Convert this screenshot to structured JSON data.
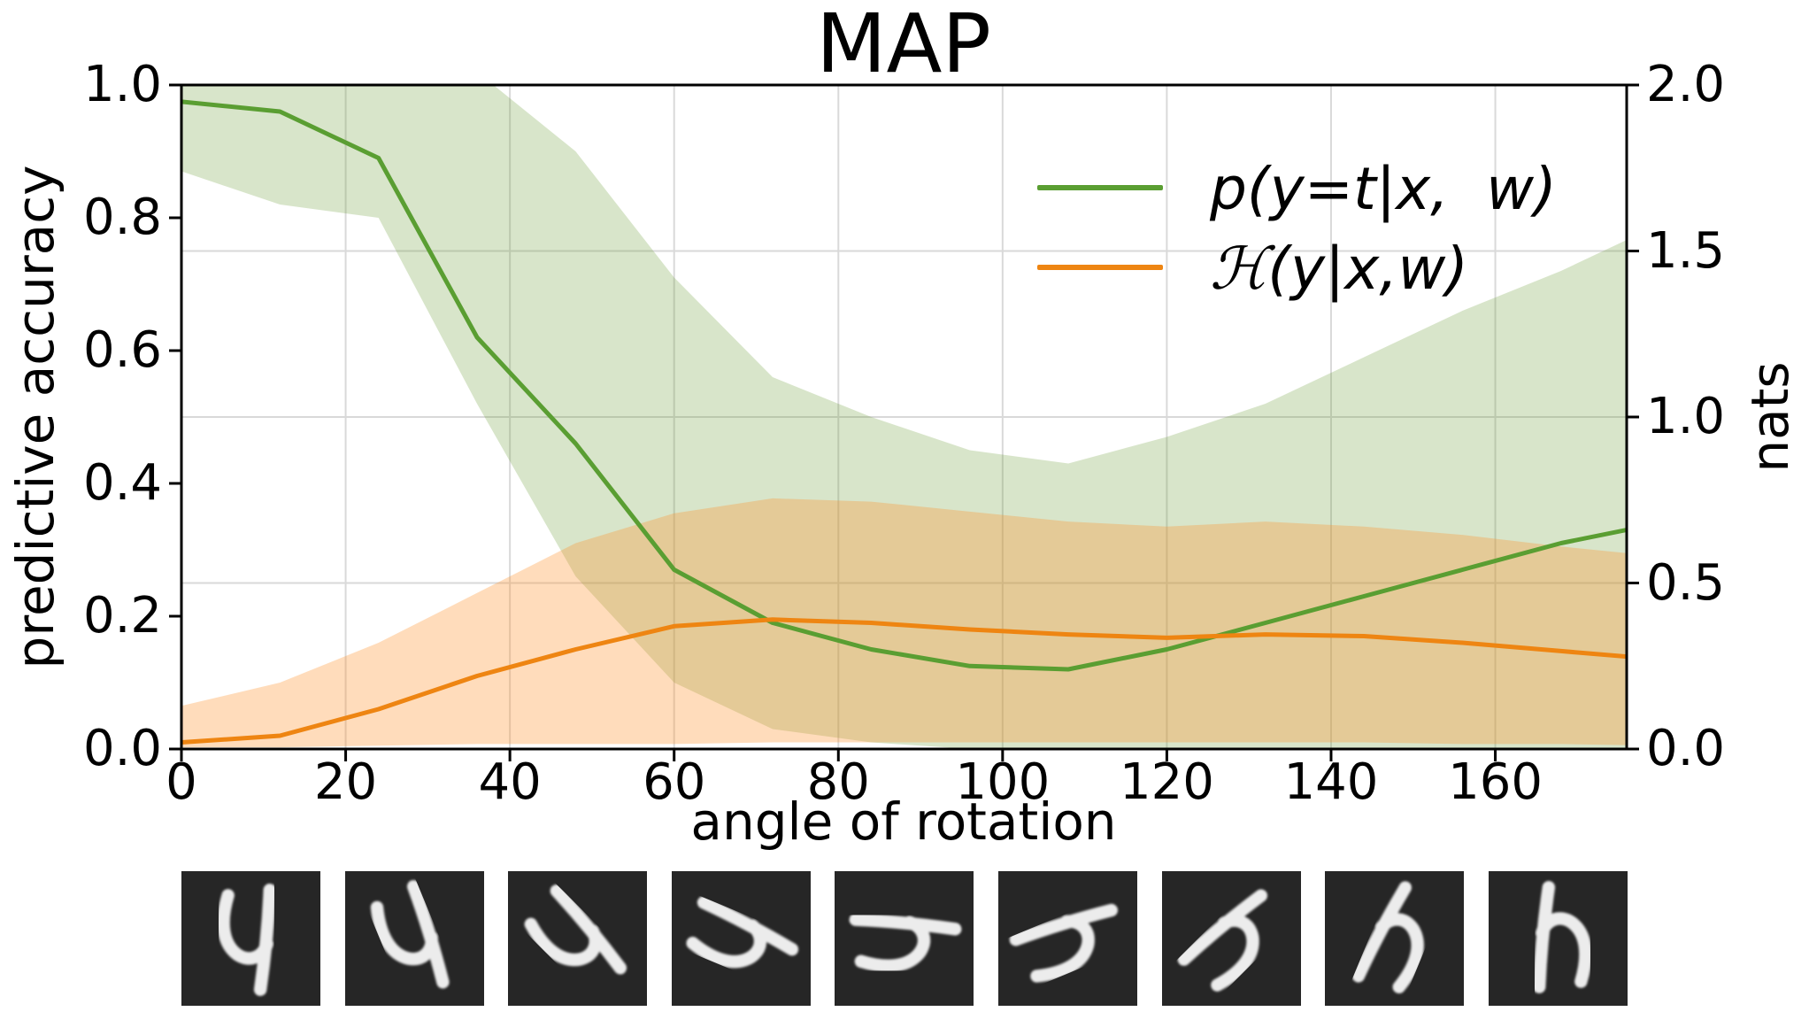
{
  "figure": {
    "title": "MAP",
    "background": "#ffffff"
  },
  "chart_data": {
    "type": "line",
    "title": "MAP",
    "xlabel": "angle of rotation",
    "ylabel_left": "predictive accuracy",
    "ylabel_right": "nats",
    "xlim": [
      0,
      176
    ],
    "ylim_left": [
      0.0,
      1.0
    ],
    "ylim_right": [
      0.0,
      2.0
    ],
    "grid": "on",
    "xticks": [
      0,
      20,
      40,
      60,
      80,
      100,
      120,
      140,
      160
    ],
    "yticks_left": [
      {
        "label": "1.0",
        "value": 1.0
      },
      {
        "label": "0.8",
        "value": 0.8
      },
      {
        "label": "0.6",
        "value": 0.6
      },
      {
        "label": "0.4",
        "value": 0.4
      },
      {
        "label": "0.2",
        "value": 0.2
      },
      {
        "label": "0.0",
        "value": 0.0
      }
    ],
    "yticks_right": [
      {
        "label": "2.0",
        "value": 2.0
      },
      {
        "label": "1.5",
        "value": 1.5
      },
      {
        "label": "1.0",
        "value": 1.0
      },
      {
        "label": "0.5",
        "value": 0.5
      },
      {
        "label": "0.0",
        "value": 0.0
      }
    ],
    "grid_y_right_values": [
      1.5,
      1.0,
      0.5
    ],
    "x": [
      0,
      12,
      24,
      36,
      48,
      60,
      72,
      84,
      96,
      108,
      120,
      132,
      144,
      156,
      168,
      180
    ],
    "series": [
      {
        "name": "accuracy",
        "label": "p(y=t|x,  w)",
        "axis": "left",
        "color": "#5a9e32",
        "fill_color": "rgba(110,160,60,0.27)",
        "values": [
          0.975,
          0.96,
          0.89,
          0.62,
          0.46,
          0.27,
          0.19,
          0.15,
          0.125,
          0.12,
          0.15,
          0.19,
          0.23,
          0.27,
          0.31,
          0.34
        ],
        "band_upper": [
          1.1,
          1.1,
          1.08,
          1.02,
          0.9,
          0.71,
          0.56,
          0.5,
          0.45,
          0.43,
          0.47,
          0.52,
          0.59,
          0.66,
          0.72,
          0.79
        ],
        "band_lower": [
          0.87,
          0.82,
          0.8,
          0.52,
          0.26,
          0.1,
          0.03,
          0.01,
          0.0,
          0.0,
          0.0,
          0.0,
          0.0,
          0.0,
          0.0,
          0.0
        ]
      },
      {
        "name": "entropy",
        "label": "(y|x,w)",
        "label_prefix_script": "H",
        "axis": "right",
        "color": "#ee8512",
        "fill_color": "rgba(255,145,45,0.32)",
        "values": [
          0.02,
          0.04,
          0.12,
          0.22,
          0.3,
          0.37,
          0.39,
          0.38,
          0.36,
          0.345,
          0.335,
          0.345,
          0.34,
          0.32,
          0.295,
          0.27
        ],
        "band_upper": [
          0.13,
          0.2,
          0.32,
          0.47,
          0.62,
          0.71,
          0.755,
          0.745,
          0.715,
          0.685,
          0.67,
          0.685,
          0.67,
          0.645,
          0.61,
          0.58
        ],
        "band_lower": [
          0.005,
          0.005,
          0.01,
          0.015,
          0.015,
          0.015,
          0.02,
          0.02,
          0.02,
          0.02,
          0.02,
          0.02,
          0.02,
          0.015,
          0.015,
          0.01
        ]
      }
    ],
    "legend": {
      "location": "upper right",
      "entries": [
        "p(y=t|x,  w)",
        "ℋ(y|x,w)"
      ]
    }
  },
  "digit_strip": {
    "description": "rotated MNIST digit 4",
    "count": 9,
    "rotation_start_deg": 0,
    "rotation_step_deg": 22.5,
    "background": "#262626",
    "ink": "#ececec"
  },
  "colors": {
    "grid": "#d9d9d9",
    "spine": "#000000",
    "tick": "#000000"
  }
}
